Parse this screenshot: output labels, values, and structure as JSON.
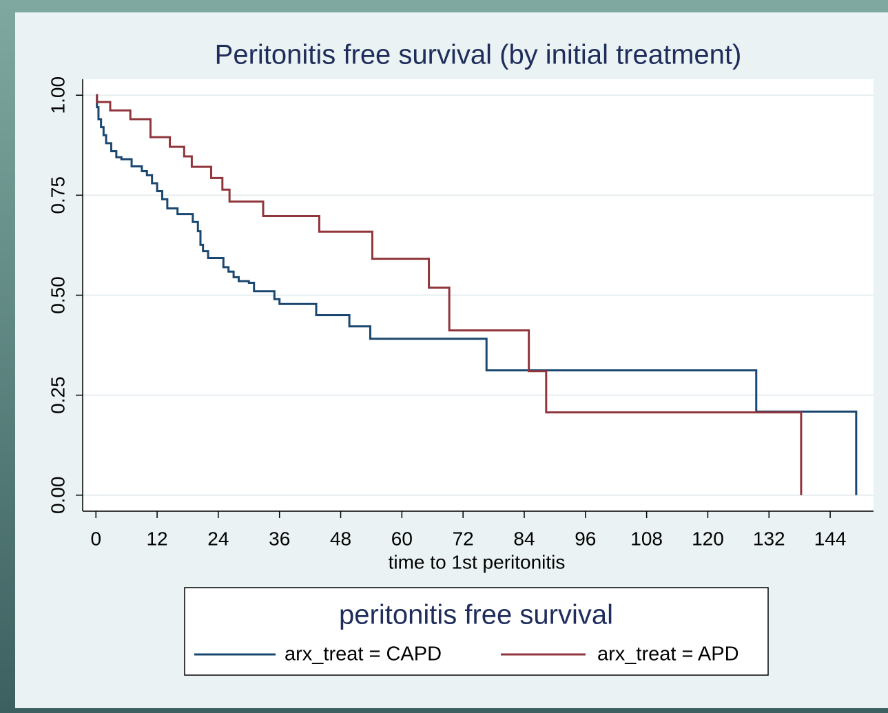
{
  "chart_data": {
    "type": "line",
    "step": "post",
    "title": "Peritonitis free survival (by initial treatment)",
    "xlabel": "time to 1st peritonitis",
    "legend_title": "peritonitis free survival",
    "legend": "bottom",
    "grid": true,
    "xlim": [
      -2.6,
      152.5
    ],
    "ylim": [
      -0.04,
      1.04
    ],
    "xticks": [
      0,
      12,
      24,
      36,
      48,
      60,
      72,
      84,
      96,
      108,
      120,
      132,
      144
    ],
    "yticks": [
      {
        "value": 0,
        "label": "0.00"
      },
      {
        "value": 0.25,
        "label": "0.25"
      },
      {
        "value": 0.5,
        "label": "0.50"
      },
      {
        "value": 0.75,
        "label": "0.75"
      },
      {
        "value": 1,
        "label": "1.00"
      }
    ],
    "series": [
      {
        "name": "arx_treat = CAPD",
        "color": "#1a476f",
        "x": [
          0,
          0.2,
          0.5,
          1,
          1.5,
          2,
          3,
          4,
          5,
          7,
          9,
          10,
          11,
          12,
          13,
          14,
          16,
          19,
          20,
          20.5,
          21,
          22,
          25,
          26,
          27,
          28,
          30,
          31,
          35,
          36,
          43.2,
          49.7,
          53.8,
          76.6,
          129.5,
          149.1
        ],
        "values": [
          1,
          0.97,
          0.94,
          0.92,
          0.9,
          0.88,
          0.86,
          0.845,
          0.84,
          0.822,
          0.81,
          0.8,
          0.78,
          0.76,
          0.74,
          0.717,
          0.703,
          0.683,
          0.66,
          0.626,
          0.61,
          0.593,
          0.57,
          0.559,
          0.545,
          0.535,
          0.531,
          0.51,
          0.49,
          0.478,
          0.45,
          0.422,
          0.391,
          0.312,
          0.209,
          0
        ]
      },
      {
        "name": "arx_treat = APD",
        "color": "#90353b",
        "x": [
          0,
          0.2,
          2.8,
          6.75,
          10.7,
          14.5,
          17.3,
          18.8,
          22.6,
          24.8,
          26.2,
          32.8,
          43.8,
          54.2,
          65.3,
          69.3,
          84.9,
          88.3,
          138.3
        ],
        "values": [
          1,
          0.983,
          0.962,
          0.94,
          0.895,
          0.871,
          0.847,
          0.821,
          0.793,
          0.764,
          0.734,
          0.698,
          0.659,
          0.591,
          0.519,
          0.412,
          0.31,
          0.207,
          0
        ]
      }
    ]
  }
}
